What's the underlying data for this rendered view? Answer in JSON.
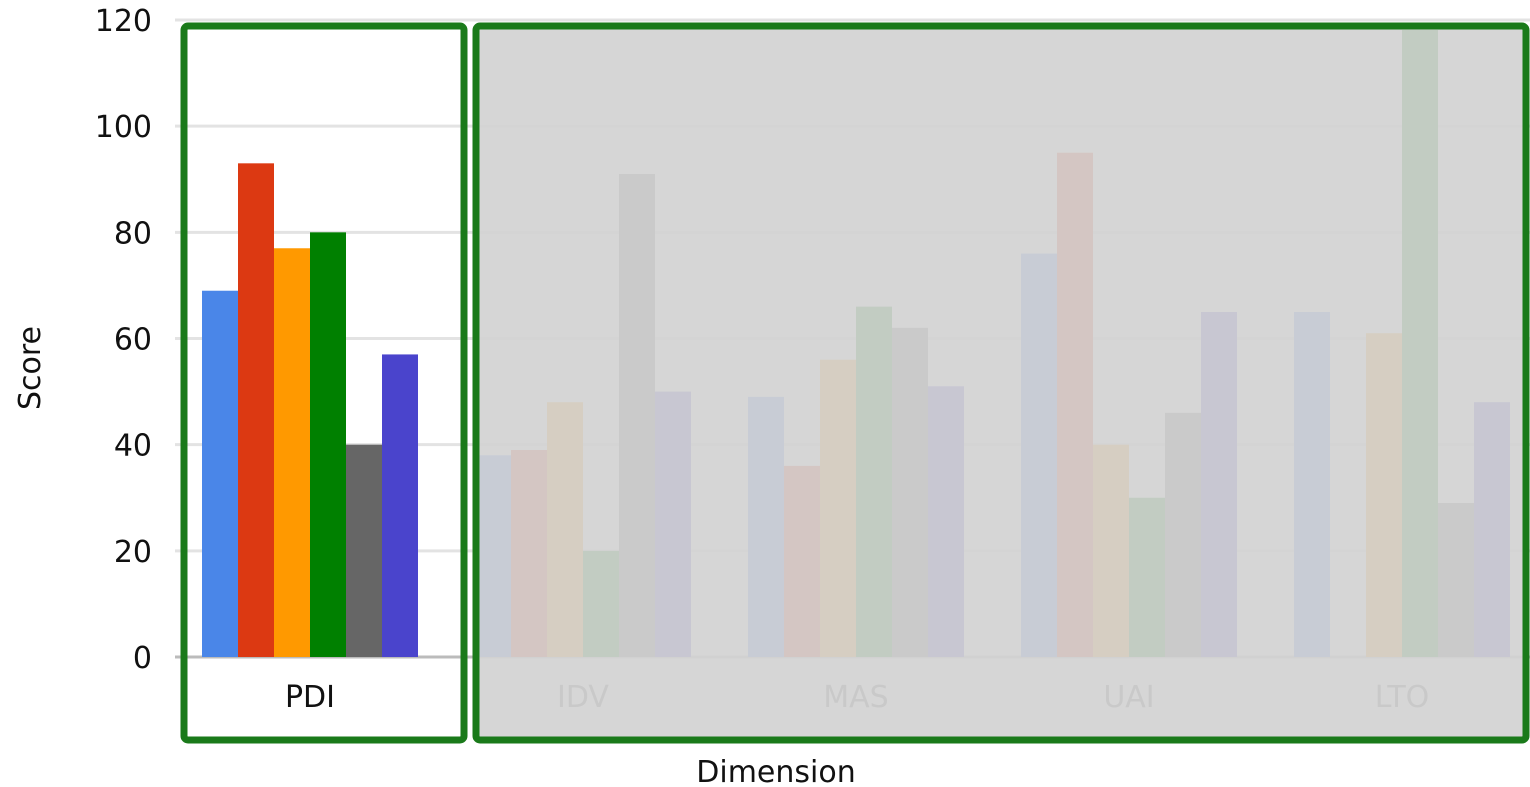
{
  "chart_data": {
    "type": "bar",
    "title": "",
    "xlabel": "Dimension",
    "ylabel": "Score",
    "ylim": [
      0,
      120
    ],
    "yticks": [
      0,
      20,
      40,
      60,
      80,
      100,
      120
    ],
    "grid": true,
    "legend": "none",
    "categories": [
      "PDI",
      "IDV",
      "MAS",
      "UAI",
      "LTO"
    ],
    "highlighted_category": "PDI",
    "series": [
      {
        "color": "#4a86e8",
        "values": [
          69,
          38,
          49,
          76,
          65
        ]
      },
      {
        "color": "#dc3912",
        "values": [
          93,
          39,
          36,
          95,
          0
        ]
      },
      {
        "color": "#ff9900",
        "values": [
          77,
          48,
          56,
          40,
          61
        ]
      },
      {
        "color": "#008000",
        "values": [
          80,
          20,
          66,
          30,
          120
        ]
      },
      {
        "color": "#666666",
        "values": [
          40,
          91,
          62,
          46,
          29
        ]
      },
      {
        "color": "#4a44cc",
        "values": [
          57,
          50,
          51,
          65,
          48
        ]
      }
    ],
    "dim_color": "#d3d3d3",
    "highlight_border_color": "#1a7a1a"
  }
}
